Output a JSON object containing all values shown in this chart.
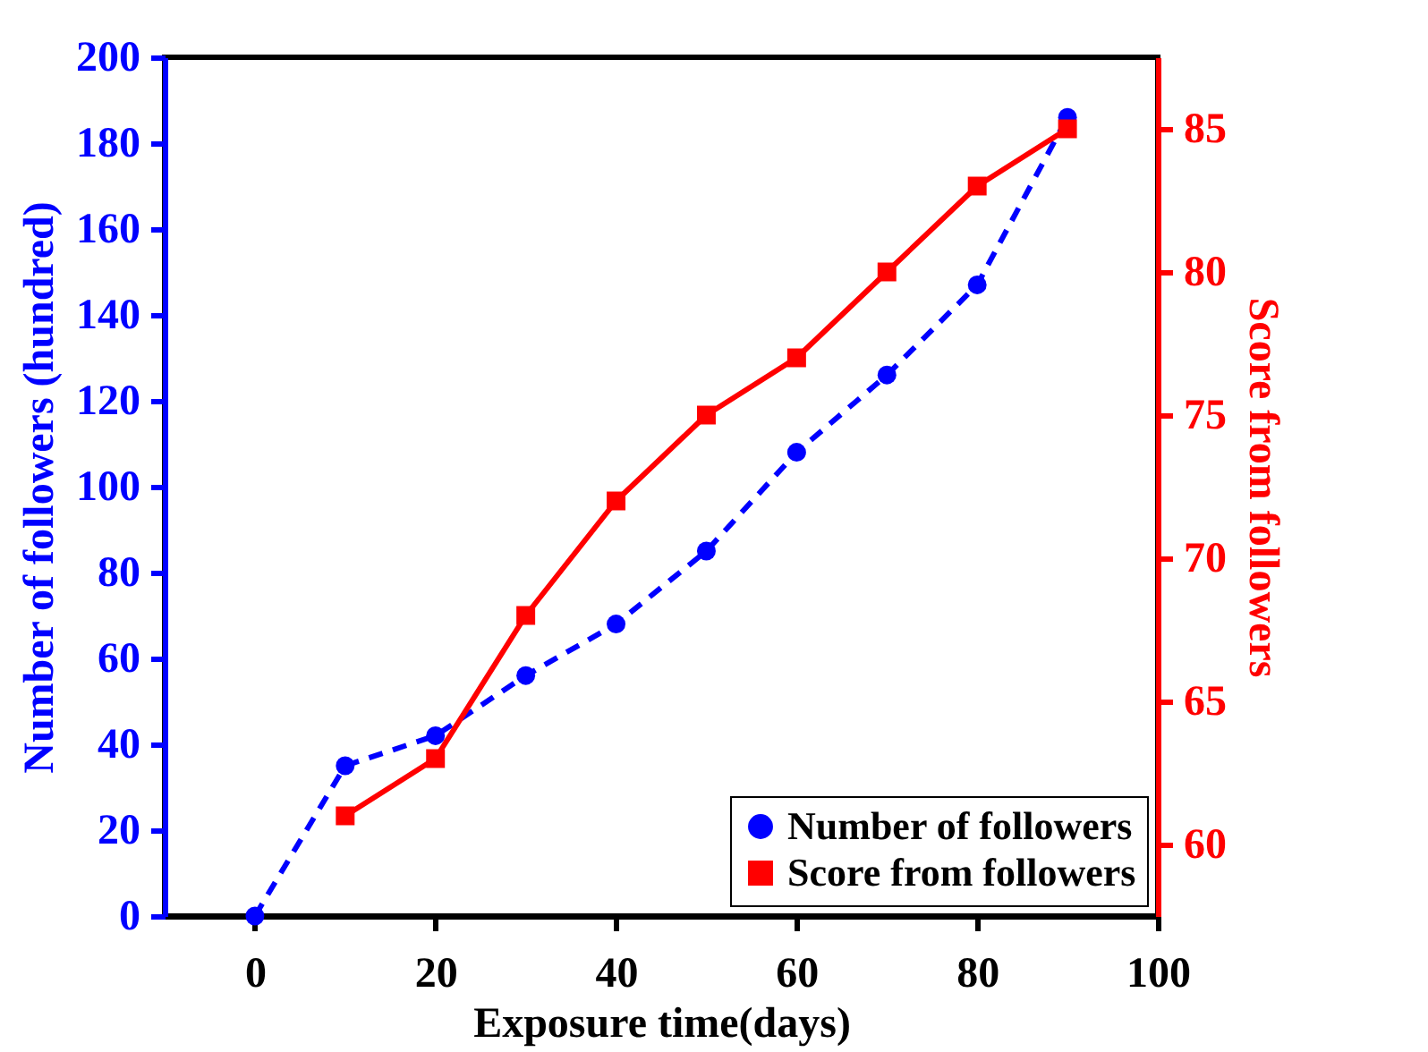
{
  "chart_data": {
    "type": "line",
    "xlabel": "Exposure time(days)",
    "ylabel": "Number of followers (hundred)",
    "y2label": "Score from followers",
    "xlim": [
      -10,
      100
    ],
    "xticks": [
      0,
      20,
      40,
      60,
      80,
      100
    ],
    "ylim": [
      0,
      200
    ],
    "yticks": [
      0,
      20,
      40,
      60,
      80,
      100,
      120,
      140,
      160,
      180,
      200
    ],
    "y2lim": [
      57.5,
      87.5
    ],
    "y2ticks": [
      60,
      65,
      70,
      75,
      80,
      85
    ],
    "legend": "bottom right",
    "grid": false,
    "series": [
      {
        "name": "Number of followers",
        "color": "#0000ff",
        "marker": "circle",
        "line_style": "dashed",
        "x": [
          0,
          10,
          20,
          30,
          40,
          50,
          60,
          70,
          80,
          90
        ],
        "values": [
          0,
          35,
          42,
          56,
          68,
          85,
          108,
          126,
          147,
          186
        ]
      },
      {
        "name": "Score from followers",
        "color": "#ff0000",
        "marker": "square",
        "line_style": "solid",
        "axis": "y2",
        "x": [
          10,
          20,
          30,
          40,
          50,
          60,
          70,
          80,
          90
        ],
        "values": [
          61,
          63,
          68,
          72,
          75,
          77,
          80,
          83,
          85
        ]
      }
    ]
  }
}
